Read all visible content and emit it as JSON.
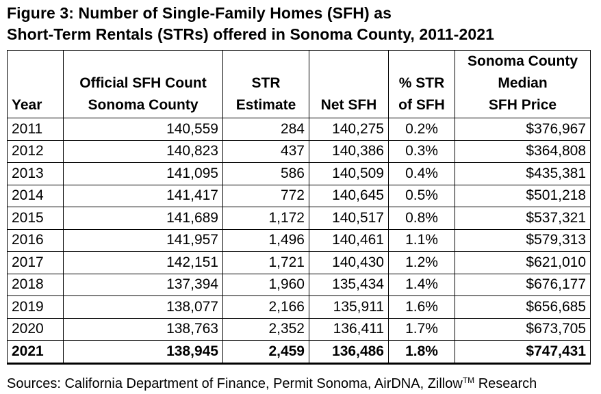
{
  "title": {
    "line1": "Figure 3: Number of Single-Family Homes (SFH) as",
    "line2": "Short-Term Rentals (STRs) offered in Sonoma County, 2011-2021"
  },
  "columns": [
    [
      "Year"
    ],
    [
      "Official SFH Count",
      "Sonoma County"
    ],
    [
      "STR",
      "Estimate"
    ],
    [
      "Net SFH"
    ],
    [
      "% STR",
      "of SFH"
    ],
    [
      "Sonoma County",
      "Median",
      "SFH Price"
    ]
  ],
  "rows": [
    {
      "year": "2011",
      "sfh": "140,559",
      "str": "284",
      "net": "140,275",
      "pct": "0.2%",
      "price": "$376,967",
      "bold": false
    },
    {
      "year": "2012",
      "sfh": "140,823",
      "str": "437",
      "net": "140,386",
      "pct": "0.3%",
      "price": "$364,808",
      "bold": false
    },
    {
      "year": "2013",
      "sfh": "141,095",
      "str": "586",
      "net": "140,509",
      "pct": "0.4%",
      "price": "$435,381",
      "bold": false
    },
    {
      "year": "2014",
      "sfh": "141,417",
      "str": "772",
      "net": "140,645",
      "pct": "0.5%",
      "price": "$501,218",
      "bold": false
    },
    {
      "year": "2015",
      "sfh": "141,689",
      "str": "1,172",
      "net": "140,517",
      "pct": "0.8%",
      "price": "$537,321",
      "bold": false
    },
    {
      "year": "2016",
      "sfh": "141,957",
      "str": "1,496",
      "net": "140,461",
      "pct": "1.1%",
      "price": "$579,313",
      "bold": false
    },
    {
      "year": "2017",
      "sfh": "142,151",
      "str": "1,721",
      "net": "140,430",
      "pct": "1.2%",
      "price": "$621,010",
      "bold": false
    },
    {
      "year": "2018",
      "sfh": "137,394",
      "str": "1,960",
      "net": "135,434",
      "pct": "1.4%",
      "price": "$676,177",
      "bold": false
    },
    {
      "year": "2019",
      "sfh": "138,077",
      "str": "2,166",
      "net": "135,911",
      "pct": "1.6%",
      "price": "$656,685",
      "bold": false
    },
    {
      "year": "2020",
      "sfh": "138,763",
      "str": "2,352",
      "net": "136,411",
      "pct": "1.7%",
      "price": "$673,705",
      "bold": false
    },
    {
      "year": "2021",
      "sfh": "138,945",
      "str": "2,459",
      "net": "136,486",
      "pct": "1.8%",
      "price": "$747,431",
      "bold": true
    }
  ],
  "source": {
    "text": "Sources: California Department of Finance, Permit Sonoma, AirDNA, Zillow",
    "tm": "TM",
    "suffix": " Research"
  }
}
